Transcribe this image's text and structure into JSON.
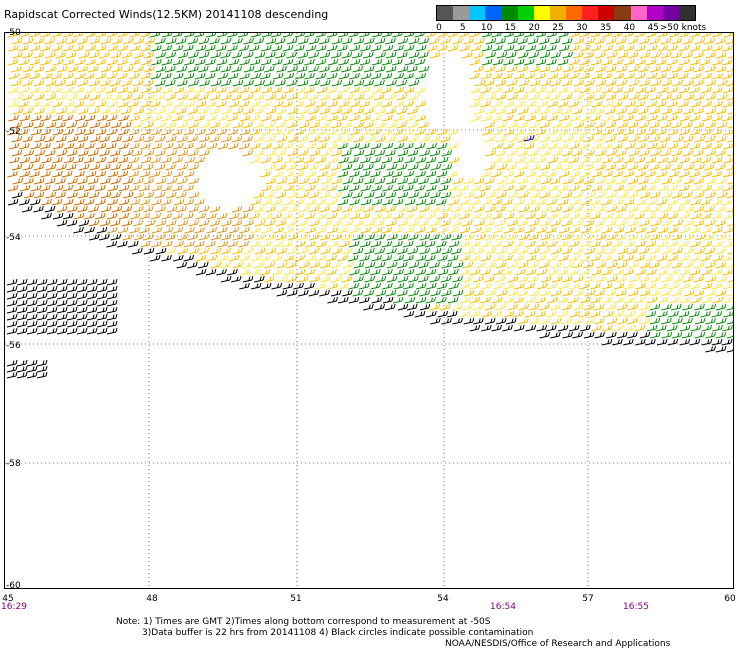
{
  "title": "Rapidscat Corrected Winds(12.5KM) 20141108 descending",
  "legend": {
    "labels": [
      "0",
      "5",
      "10",
      "15",
      "20",
      "25",
      "30",
      "35",
      "40",
      "45",
      ">50 knots"
    ],
    "colors": [
      "#555555",
      "#9a9a9a",
      "#00c8ff",
      "#0066ff",
      "#008a00",
      "#00d000",
      "#ffff00",
      "#f0b000",
      "#ff6a00",
      "#ff2020",
      "#cc0000",
      "#8a3a10",
      "#ff66cc",
      "#b000c8",
      "#7000a0",
      "#303030"
    ]
  },
  "axes": {
    "lat_labels": [
      "-50",
      "-52",
      "-54",
      "-56",
      "-58",
      "-60"
    ],
    "lon_labels": [
      "45",
      "48",
      "51",
      "54",
      "57",
      "60"
    ]
  },
  "times": [
    "16:29",
    "16:54",
    "16:55"
  ],
  "notes": {
    "line1": "Note: 1) Times are GMT 2)Times along bottom correspond to measurement at -50S",
    "line2": "3)Data buffer is 22 hrs from 20141108 4) Black circles indicate possible contamination",
    "line3": "NOAA/NESDIS/Office of Research and Applications"
  },
  "barb_colors": {
    "calm": "#ffe840",
    "light": "#f4c000",
    "moderate": "#d99a20",
    "strong": "#c87000",
    "green": "#108a10",
    "dark": "#000000",
    "blue": "#0000cc"
  }
}
